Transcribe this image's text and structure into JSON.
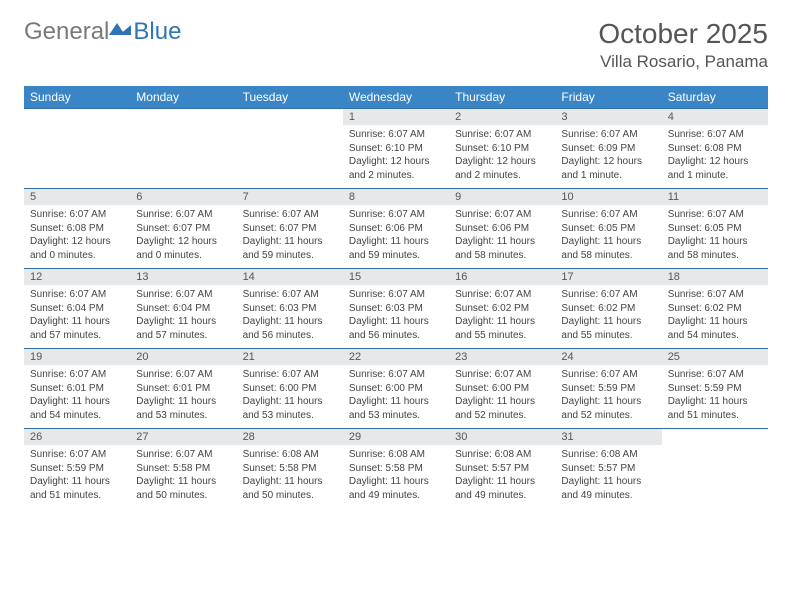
{
  "logo": {
    "general": "General",
    "blue": "Blue"
  },
  "header": {
    "title": "October 2025",
    "location": "Villa Rosario, Panama"
  },
  "colors": {
    "header_bg": "#3a85c6",
    "header_text": "#ffffff",
    "row_border": "#2f6fa8",
    "daynum_bg": "#e7e8ea",
    "logo_gray": "#7a7a7a",
    "logo_blue": "#2f75b5"
  },
  "weekdays": [
    "Sunday",
    "Monday",
    "Tuesday",
    "Wednesday",
    "Thursday",
    "Friday",
    "Saturday"
  ],
  "weeks": [
    [
      {
        "n": "",
        "sr": "",
        "ss": "",
        "dl": ""
      },
      {
        "n": "",
        "sr": "",
        "ss": "",
        "dl": ""
      },
      {
        "n": "",
        "sr": "",
        "ss": "",
        "dl": ""
      },
      {
        "n": "1",
        "sr": "Sunrise: 6:07 AM",
        "ss": "Sunset: 6:10 PM",
        "dl": "Daylight: 12 hours and 2 minutes."
      },
      {
        "n": "2",
        "sr": "Sunrise: 6:07 AM",
        "ss": "Sunset: 6:10 PM",
        "dl": "Daylight: 12 hours and 2 minutes."
      },
      {
        "n": "3",
        "sr": "Sunrise: 6:07 AM",
        "ss": "Sunset: 6:09 PM",
        "dl": "Daylight: 12 hours and 1 minute."
      },
      {
        "n": "4",
        "sr": "Sunrise: 6:07 AM",
        "ss": "Sunset: 6:08 PM",
        "dl": "Daylight: 12 hours and 1 minute."
      }
    ],
    [
      {
        "n": "5",
        "sr": "Sunrise: 6:07 AM",
        "ss": "Sunset: 6:08 PM",
        "dl": "Daylight: 12 hours and 0 minutes."
      },
      {
        "n": "6",
        "sr": "Sunrise: 6:07 AM",
        "ss": "Sunset: 6:07 PM",
        "dl": "Daylight: 12 hours and 0 minutes."
      },
      {
        "n": "7",
        "sr": "Sunrise: 6:07 AM",
        "ss": "Sunset: 6:07 PM",
        "dl": "Daylight: 11 hours and 59 minutes."
      },
      {
        "n": "8",
        "sr": "Sunrise: 6:07 AM",
        "ss": "Sunset: 6:06 PM",
        "dl": "Daylight: 11 hours and 59 minutes."
      },
      {
        "n": "9",
        "sr": "Sunrise: 6:07 AM",
        "ss": "Sunset: 6:06 PM",
        "dl": "Daylight: 11 hours and 58 minutes."
      },
      {
        "n": "10",
        "sr": "Sunrise: 6:07 AM",
        "ss": "Sunset: 6:05 PM",
        "dl": "Daylight: 11 hours and 58 minutes."
      },
      {
        "n": "11",
        "sr": "Sunrise: 6:07 AM",
        "ss": "Sunset: 6:05 PM",
        "dl": "Daylight: 11 hours and 58 minutes."
      }
    ],
    [
      {
        "n": "12",
        "sr": "Sunrise: 6:07 AM",
        "ss": "Sunset: 6:04 PM",
        "dl": "Daylight: 11 hours and 57 minutes."
      },
      {
        "n": "13",
        "sr": "Sunrise: 6:07 AM",
        "ss": "Sunset: 6:04 PM",
        "dl": "Daylight: 11 hours and 57 minutes."
      },
      {
        "n": "14",
        "sr": "Sunrise: 6:07 AM",
        "ss": "Sunset: 6:03 PM",
        "dl": "Daylight: 11 hours and 56 minutes."
      },
      {
        "n": "15",
        "sr": "Sunrise: 6:07 AM",
        "ss": "Sunset: 6:03 PM",
        "dl": "Daylight: 11 hours and 56 minutes."
      },
      {
        "n": "16",
        "sr": "Sunrise: 6:07 AM",
        "ss": "Sunset: 6:02 PM",
        "dl": "Daylight: 11 hours and 55 minutes."
      },
      {
        "n": "17",
        "sr": "Sunrise: 6:07 AM",
        "ss": "Sunset: 6:02 PM",
        "dl": "Daylight: 11 hours and 55 minutes."
      },
      {
        "n": "18",
        "sr": "Sunrise: 6:07 AM",
        "ss": "Sunset: 6:02 PM",
        "dl": "Daylight: 11 hours and 54 minutes."
      }
    ],
    [
      {
        "n": "19",
        "sr": "Sunrise: 6:07 AM",
        "ss": "Sunset: 6:01 PM",
        "dl": "Daylight: 11 hours and 54 minutes."
      },
      {
        "n": "20",
        "sr": "Sunrise: 6:07 AM",
        "ss": "Sunset: 6:01 PM",
        "dl": "Daylight: 11 hours and 53 minutes."
      },
      {
        "n": "21",
        "sr": "Sunrise: 6:07 AM",
        "ss": "Sunset: 6:00 PM",
        "dl": "Daylight: 11 hours and 53 minutes."
      },
      {
        "n": "22",
        "sr": "Sunrise: 6:07 AM",
        "ss": "Sunset: 6:00 PM",
        "dl": "Daylight: 11 hours and 53 minutes."
      },
      {
        "n": "23",
        "sr": "Sunrise: 6:07 AM",
        "ss": "Sunset: 6:00 PM",
        "dl": "Daylight: 11 hours and 52 minutes."
      },
      {
        "n": "24",
        "sr": "Sunrise: 6:07 AM",
        "ss": "Sunset: 5:59 PM",
        "dl": "Daylight: 11 hours and 52 minutes."
      },
      {
        "n": "25",
        "sr": "Sunrise: 6:07 AM",
        "ss": "Sunset: 5:59 PM",
        "dl": "Daylight: 11 hours and 51 minutes."
      }
    ],
    [
      {
        "n": "26",
        "sr": "Sunrise: 6:07 AM",
        "ss": "Sunset: 5:59 PM",
        "dl": "Daylight: 11 hours and 51 minutes."
      },
      {
        "n": "27",
        "sr": "Sunrise: 6:07 AM",
        "ss": "Sunset: 5:58 PM",
        "dl": "Daylight: 11 hours and 50 minutes."
      },
      {
        "n": "28",
        "sr": "Sunrise: 6:08 AM",
        "ss": "Sunset: 5:58 PM",
        "dl": "Daylight: 11 hours and 50 minutes."
      },
      {
        "n": "29",
        "sr": "Sunrise: 6:08 AM",
        "ss": "Sunset: 5:58 PM",
        "dl": "Daylight: 11 hours and 49 minutes."
      },
      {
        "n": "30",
        "sr": "Sunrise: 6:08 AM",
        "ss": "Sunset: 5:57 PM",
        "dl": "Daylight: 11 hours and 49 minutes."
      },
      {
        "n": "31",
        "sr": "Sunrise: 6:08 AM",
        "ss": "Sunset: 5:57 PM",
        "dl": "Daylight: 11 hours and 49 minutes."
      },
      {
        "n": "",
        "sr": "",
        "ss": "",
        "dl": ""
      }
    ]
  ]
}
